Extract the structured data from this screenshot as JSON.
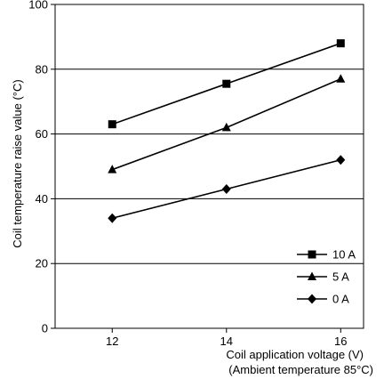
{
  "chart_data": {
    "type": "line",
    "xlabel": "Coil application voltage (V)",
    "xlabel_note": "(Ambient temperature 85°C)",
    "ylabel": "Coil temperature raise value (°C)",
    "xlim": [
      11,
      16.4
    ],
    "ylim": [
      0,
      100
    ],
    "x_ticks": [
      12,
      14,
      16
    ],
    "y_ticks": [
      0,
      20,
      40,
      60,
      80,
      100
    ],
    "grid": "horizontal",
    "legend_position": "bottom-right",
    "series": [
      {
        "name": "10 A",
        "marker": "square",
        "x": [
          12,
          14,
          16
        ],
        "values": [
          63,
          75.5,
          88
        ]
      },
      {
        "name": "5 A",
        "marker": "triangle",
        "x": [
          12,
          14,
          16
        ],
        "values": [
          49,
          62,
          77
        ]
      },
      {
        "name": "0 A",
        "marker": "diamond",
        "x": [
          12,
          14,
          16
        ],
        "values": [
          34,
          43,
          52
        ]
      }
    ],
    "colors": {
      "line": "#000000",
      "grid": "#000000",
      "background": "#ffffff"
    }
  }
}
